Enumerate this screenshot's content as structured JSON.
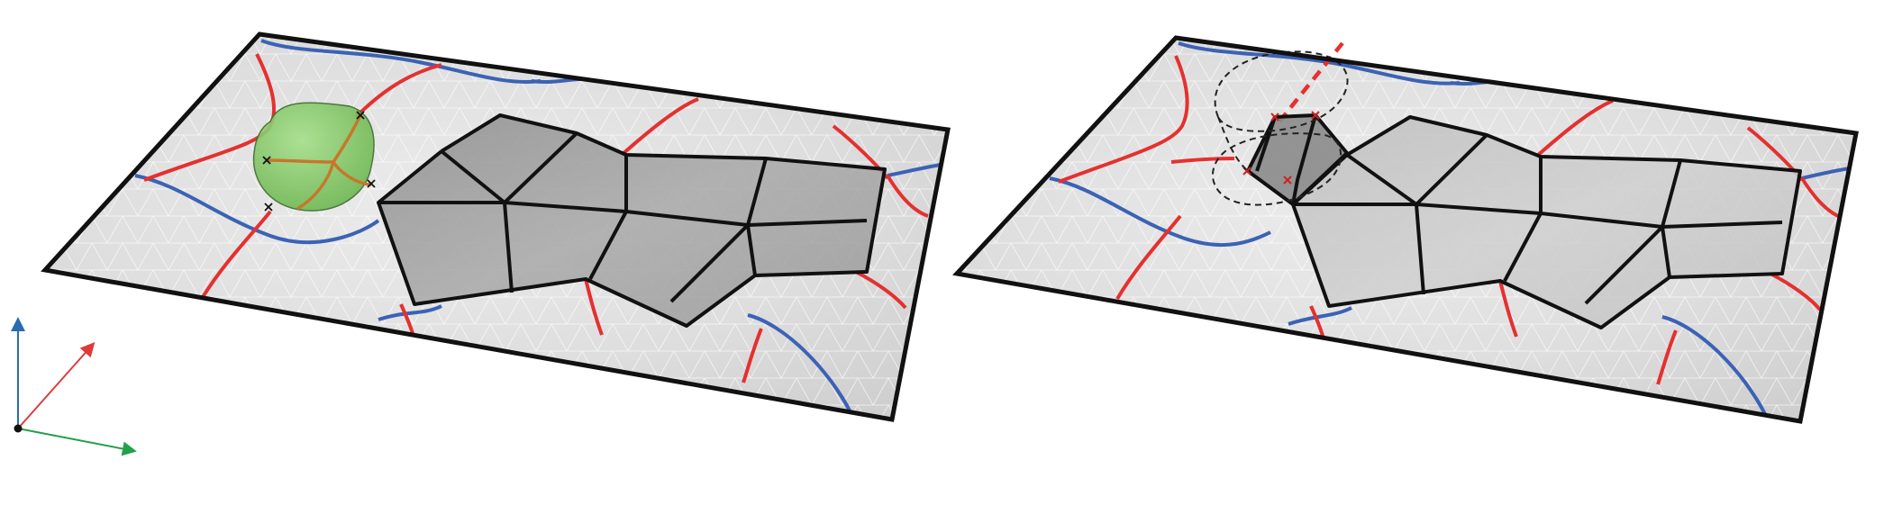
{
  "figure": {
    "caption": "",
    "panels": [
      {
        "id": "left",
        "description_visible": false
      },
      {
        "id": "right",
        "description_visible": false
      }
    ]
  },
  "colors": {
    "background": "#ffffff",
    "plane_fill": "#e4e4e4",
    "plane_border": "#111111",
    "mesh_line": "#ffffff",
    "red_curve": "#e53030",
    "blue_curve": "#3b62b5",
    "patch_fill": "#a3a3a3",
    "patch_edge": "#111111",
    "green_blob": "#7dc95e",
    "green_blob_edge": "#3f6b2f",
    "orange_curve": "#c7772b",
    "dashed_outline": "#222222",
    "axis_blue": "#2a6cb3",
    "axis_red": "#e03a3a",
    "axis_green": "#22a04a",
    "origin": "#111111"
  },
  "icons": {
    "axes": "coordinate-axes-icon",
    "blob": "green-blob",
    "origin": "origin-dot"
  }
}
